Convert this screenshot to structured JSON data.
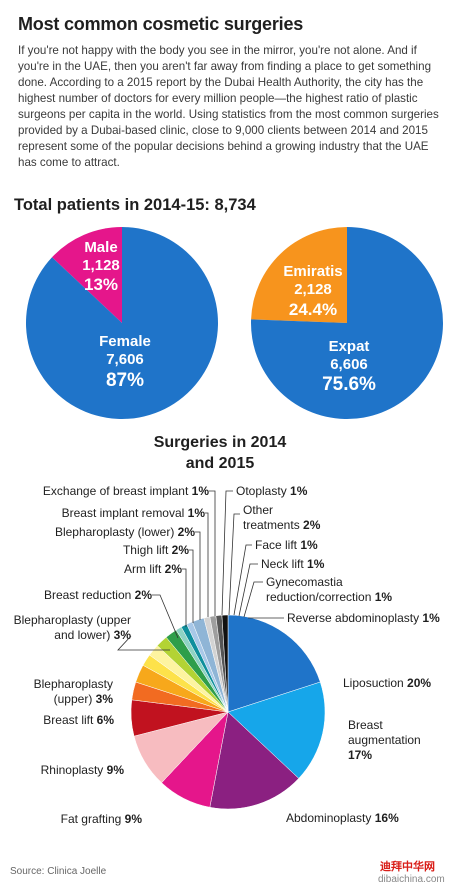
{
  "header": {
    "title": "Most common cosmetic surgeries",
    "intro": "If you're not happy with the body you see in the mirror, you're not alone. And if you're in the UAE, then you aren't far away from finding a place to get something done. According to a 2015 report by the Dubai Health Authority, the city has the highest number of doctors for every million people—the highest ratio of plastic surgeons per capita in the world. Using statistics from the most common surgeries provided by a Dubai-based clinic, close to 9,000 clients between 2014 and 2015 represent some of the popular decisions behind a growing industry that the UAE has come to attract."
  },
  "total": {
    "heading": "Total patients in 2014-15: 8,734"
  },
  "chart_data": [
    {
      "type": "pie",
      "title": "",
      "slices": [
        {
          "label": "Female",
          "count": "7,606",
          "percent": 87,
          "percent_label": "87%",
          "color": "#1f74c9"
        },
        {
          "label": "Male",
          "count": "1,128",
          "percent": 13,
          "percent_label": "13%",
          "color": "#e5168b"
        }
      ]
    },
    {
      "type": "pie",
      "title": "",
      "slices": [
        {
          "label": "Expat",
          "count": "6,606",
          "percent": 75.6,
          "percent_label": "75.6%",
          "color": "#1f74c9"
        },
        {
          "label": "Emiratis",
          "count": "2,128",
          "percent": 24.4,
          "percent_label": "24.4%",
          "color": "#f7941d"
        }
      ]
    },
    {
      "type": "pie",
      "title": "Surgeries in 2014 and 2015",
      "title_lines": [
        "Surgeries in 2014",
        "and 2015"
      ],
      "slices": [
        {
          "label": "Liposuction",
          "value": 20,
          "value_label": "20%",
          "color": "#1f74c9"
        },
        {
          "label": "Breast augmentation",
          "value": 17,
          "value_label": "17%",
          "color": "#16a6ea"
        },
        {
          "label": "Abdominoplasty",
          "value": 16,
          "value_label": "16%",
          "color": "#8b2081"
        },
        {
          "label": "Fat grafting",
          "value": 9,
          "value_label": "9%",
          "color": "#e5168b"
        },
        {
          "label": "Rhinoplasty",
          "value": 9,
          "value_label": "9%",
          "color": "#f7bcc0"
        },
        {
          "label": "Breast lift",
          "value": 6,
          "value_label": "6%",
          "color": "#c1121f"
        },
        {
          "label": "Blepharoplasty (upper)",
          "value": 3,
          "value_label": "3%",
          "color": "#f26b21"
        },
        {
          "label": "Blepharoplasty (upper and lower)",
          "value": 3,
          "value_label": "3%",
          "color": "#f7a81b"
        },
        {
          "label": "Breast reduction",
          "value": 2,
          "value_label": "2%",
          "color": "#fde24a"
        },
        {
          "label": "Arm lift",
          "value": 2,
          "value_label": "2%",
          "color": "#fdf4a0"
        },
        {
          "label": "Thigh lift",
          "value": 2,
          "value_label": "2%",
          "color": "#b3d334"
        },
        {
          "label": "Blepharoplasty (lower)",
          "value": 2,
          "value_label": "2%",
          "color": "#2e9e4a"
        },
        {
          "label": "Breast implant removal",
          "value": 1,
          "value_label": "1%",
          "color": "#8ed3c4"
        },
        {
          "label": "Exchange of breast implant",
          "value": 1,
          "value_label": "1%",
          "color": "#0e8f9c"
        },
        {
          "label": "Otoplasty",
          "value": 1,
          "value_label": "1%",
          "color": "#a8c8e8"
        },
        {
          "label": "Other treatments",
          "value": 2,
          "value_label": "2%",
          "color": "#8fb5d6"
        },
        {
          "label": "Face lift",
          "value": 1,
          "value_label": "1%",
          "color": "#d3d3d3"
        },
        {
          "label": "Neck lift",
          "value": 1,
          "value_label": "1%",
          "color": "#9e9e9e"
        },
        {
          "label": "Gynecomastia reduction/correction",
          "value": 1,
          "value_label": "1%",
          "color": "#555555"
        },
        {
          "label": "Reverse abdominoplasty",
          "value": 1,
          "value_label": "1%",
          "color": "#111111"
        }
      ]
    }
  ],
  "footer": {
    "source": "Source: Clinica Joelle",
    "watermark_text": "迪拜中华网",
    "watermark_site": "dibaichina.com"
  }
}
